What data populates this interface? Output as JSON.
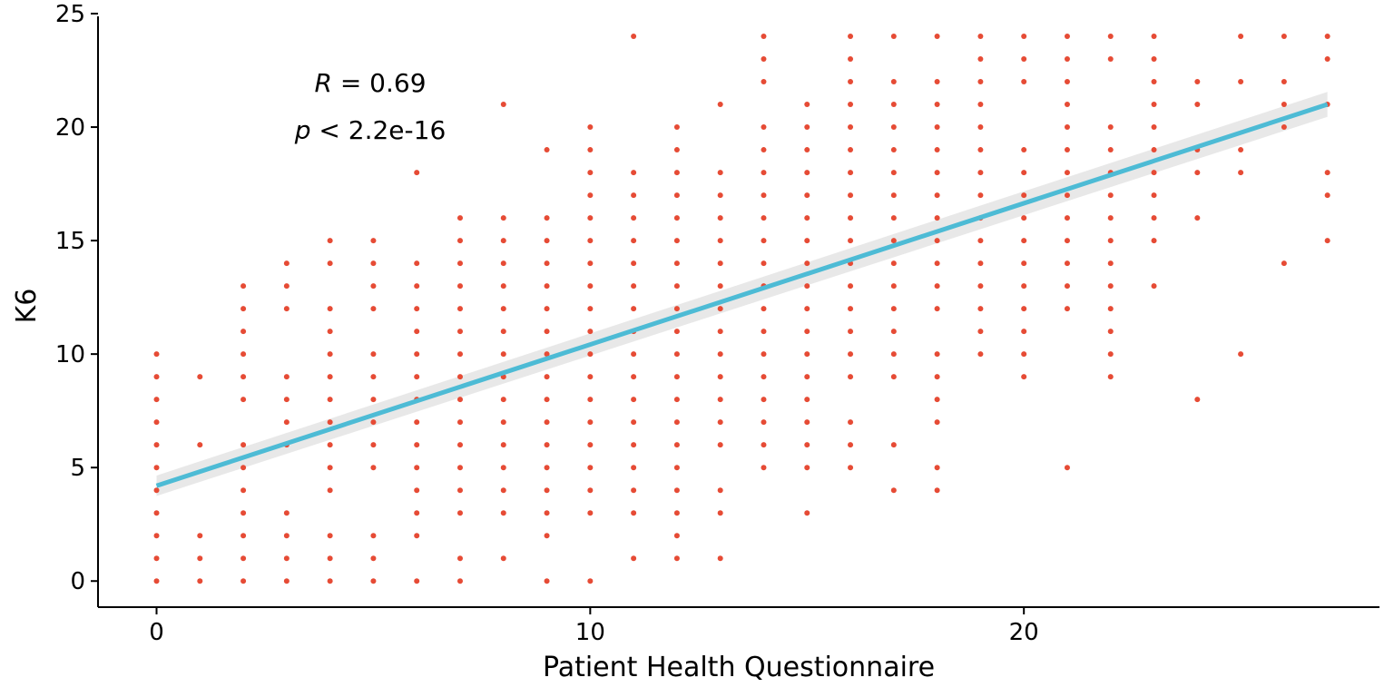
{
  "chart_data": {
    "type": "scatter",
    "title": "",
    "xlabel": "Patient Health Questionnaire",
    "ylabel": "K6",
    "xlim": [
      -1.35,
      28.2
    ],
    "ylim": [
      -1.15,
      25.2
    ],
    "x_ticks": [
      0,
      10,
      20
    ],
    "x_tick_labels": [
      "0",
      "10",
      "20"
    ],
    "y_ticks": [
      0,
      5,
      10,
      15,
      20,
      25
    ],
    "y_tick_labels": [
      "0",
      "5",
      "10",
      "15",
      "20",
      "25"
    ],
    "grid": false,
    "point_color": "#E64B35",
    "line_color": "#4DBBD5",
    "band_color": "#D9D9D9",
    "annotation": {
      "r_symbol": "R",
      "r_text": " = 0.69",
      "p_symbol": "p",
      "p_text": " < 2.2e-16"
    },
    "regression": {
      "x": [
        0,
        27
      ],
      "y": [
        4.2,
        21.0
      ],
      "se_halfwidth": [
        0.45,
        0.55
      ]
    },
    "points": [
      [
        0,
        0
      ],
      [
        0,
        1
      ],
      [
        0,
        2
      ],
      [
        0,
        3
      ],
      [
        0,
        4
      ],
      [
        0,
        5
      ],
      [
        0,
        6
      ],
      [
        0,
        7
      ],
      [
        0,
        8
      ],
      [
        0,
        9
      ],
      [
        0,
        10
      ],
      [
        1,
        0
      ],
      [
        1,
        1
      ],
      [
        1,
        2
      ],
      [
        1,
        6
      ],
      [
        1,
        9
      ],
      [
        2,
        0
      ],
      [
        2,
        1
      ],
      [
        2,
        2
      ],
      [
        2,
        3
      ],
      [
        2,
        4
      ],
      [
        2,
        5
      ],
      [
        2,
        6
      ],
      [
        2,
        8
      ],
      [
        2,
        9
      ],
      [
        2,
        10
      ],
      [
        2,
        11
      ],
      [
        2,
        12
      ],
      [
        2,
        13
      ],
      [
        3,
        0
      ],
      [
        3,
        1
      ],
      [
        3,
        2
      ],
      [
        3,
        3
      ],
      [
        3,
        6
      ],
      [
        3,
        7
      ],
      [
        3,
        8
      ],
      [
        3,
        9
      ],
      [
        3,
        12
      ],
      [
        3,
        13
      ],
      [
        3,
        14
      ],
      [
        4,
        0
      ],
      [
        4,
        1
      ],
      [
        4,
        2
      ],
      [
        4,
        4
      ],
      [
        4,
        5
      ],
      [
        4,
        6
      ],
      [
        4,
        7
      ],
      [
        4,
        8
      ],
      [
        4,
        9
      ],
      [
        4,
        10
      ],
      [
        4,
        11
      ],
      [
        4,
        12
      ],
      [
        4,
        14
      ],
      [
        4,
        15
      ],
      [
        5,
        0
      ],
      [
        5,
        1
      ],
      [
        5,
        2
      ],
      [
        5,
        5
      ],
      [
        5,
        6
      ],
      [
        5,
        7
      ],
      [
        5,
        8
      ],
      [
        5,
        9
      ],
      [
        5,
        10
      ],
      [
        5,
        12
      ],
      [
        5,
        13
      ],
      [
        5,
        14
      ],
      [
        5,
        15
      ],
      [
        6,
        0
      ],
      [
        6,
        2
      ],
      [
        6,
        3
      ],
      [
        6,
        4
      ],
      [
        6,
        5
      ],
      [
        6,
        6
      ],
      [
        6,
        7
      ],
      [
        6,
        8
      ],
      [
        6,
        9
      ],
      [
        6,
        10
      ],
      [
        6,
        11
      ],
      [
        6,
        12
      ],
      [
        6,
        13
      ],
      [
        6,
        14
      ],
      [
        6,
        18
      ],
      [
        7,
        0
      ],
      [
        7,
        1
      ],
      [
        7,
        3
      ],
      [
        7,
        4
      ],
      [
        7,
        5
      ],
      [
        7,
        6
      ],
      [
        7,
        7
      ],
      [
        7,
        8
      ],
      [
        7,
        9
      ],
      [
        7,
        10
      ],
      [
        7,
        11
      ],
      [
        7,
        12
      ],
      [
        7,
        13
      ],
      [
        7,
        14
      ],
      [
        7,
        15
      ],
      [
        7,
        16
      ],
      [
        8,
        1
      ],
      [
        8,
        3
      ],
      [
        8,
        4
      ],
      [
        8,
        5
      ],
      [
        8,
        6
      ],
      [
        8,
        7
      ],
      [
        8,
        8
      ],
      [
        8,
        9
      ],
      [
        8,
        10
      ],
      [
        8,
        11
      ],
      [
        8,
        12
      ],
      [
        8,
        13
      ],
      [
        8,
        14
      ],
      [
        8,
        15
      ],
      [
        8,
        16
      ],
      [
        8,
        21
      ],
      [
        9,
        0
      ],
      [
        9,
        2
      ],
      [
        9,
        3
      ],
      [
        9,
        4
      ],
      [
        9,
        5
      ],
      [
        9,
        6
      ],
      [
        9,
        7
      ],
      [
        9,
        8
      ],
      [
        9,
        9
      ],
      [
        9,
        10
      ],
      [
        9,
        11
      ],
      [
        9,
        12
      ],
      [
        9,
        13
      ],
      [
        9,
        14
      ],
      [
        9,
        15
      ],
      [
        9,
        16
      ],
      [
        9,
        19
      ],
      [
        10,
        0
      ],
      [
        10,
        3
      ],
      [
        10,
        4
      ],
      [
        10,
        5
      ],
      [
        10,
        6
      ],
      [
        10,
        7
      ],
      [
        10,
        8
      ],
      [
        10,
        9
      ],
      [
        10,
        10
      ],
      [
        10,
        11
      ],
      [
        10,
        12
      ],
      [
        10,
        13
      ],
      [
        10,
        14
      ],
      [
        10,
        15
      ],
      [
        10,
        16
      ],
      [
        10,
        17
      ],
      [
        10,
        18
      ],
      [
        10,
        19
      ],
      [
        10,
        20
      ],
      [
        11,
        1
      ],
      [
        11,
        3
      ],
      [
        11,
        4
      ],
      [
        11,
        5
      ],
      [
        11,
        6
      ],
      [
        11,
        7
      ],
      [
        11,
        8
      ],
      [
        11,
        9
      ],
      [
        11,
        10
      ],
      [
        11,
        11
      ],
      [
        11,
        12
      ],
      [
        11,
        13
      ],
      [
        11,
        14
      ],
      [
        11,
        15
      ],
      [
        11,
        16
      ],
      [
        11,
        17
      ],
      [
        11,
        18
      ],
      [
        11,
        24
      ],
      [
        12,
        1
      ],
      [
        12,
        2
      ],
      [
        12,
        3
      ],
      [
        12,
        4
      ],
      [
        12,
        5
      ],
      [
        12,
        6
      ],
      [
        12,
        7
      ],
      [
        12,
        8
      ],
      [
        12,
        9
      ],
      [
        12,
        10
      ],
      [
        12,
        11
      ],
      [
        12,
        12
      ],
      [
        12,
        13
      ],
      [
        12,
        14
      ],
      [
        12,
        15
      ],
      [
        12,
        16
      ],
      [
        12,
        17
      ],
      [
        12,
        18
      ],
      [
        12,
        19
      ],
      [
        12,
        20
      ],
      [
        13,
        1
      ],
      [
        13,
        3
      ],
      [
        13,
        4
      ],
      [
        13,
        6
      ],
      [
        13,
        7
      ],
      [
        13,
        8
      ],
      [
        13,
        9
      ],
      [
        13,
        10
      ],
      [
        13,
        11
      ],
      [
        13,
        12
      ],
      [
        13,
        13
      ],
      [
        13,
        14
      ],
      [
        13,
        15
      ],
      [
        13,
        16
      ],
      [
        13,
        17
      ],
      [
        13,
        18
      ],
      [
        13,
        21
      ],
      [
        14,
        5
      ],
      [
        14,
        6
      ],
      [
        14,
        7
      ],
      [
        14,
        8
      ],
      [
        14,
        9
      ],
      [
        14,
        10
      ],
      [
        14,
        11
      ],
      [
        14,
        12
      ],
      [
        14,
        13
      ],
      [
        14,
        14
      ],
      [
        14,
        15
      ],
      [
        14,
        16
      ],
      [
        14,
        17
      ],
      [
        14,
        18
      ],
      [
        14,
        19
      ],
      [
        14,
        20
      ],
      [
        14,
        22
      ],
      [
        14,
        23
      ],
      [
        14,
        24
      ],
      [
        15,
        3
      ],
      [
        15,
        5
      ],
      [
        15,
        6
      ],
      [
        15,
        7
      ],
      [
        15,
        8
      ],
      [
        15,
        9
      ],
      [
        15,
        10
      ],
      [
        15,
        11
      ],
      [
        15,
        12
      ],
      [
        15,
        13
      ],
      [
        15,
        14
      ],
      [
        15,
        15
      ],
      [
        15,
        16
      ],
      [
        15,
        17
      ],
      [
        15,
        18
      ],
      [
        15,
        19
      ],
      [
        15,
        20
      ],
      [
        15,
        21
      ],
      [
        16,
        5
      ],
      [
        16,
        6
      ],
      [
        16,
        7
      ],
      [
        16,
        9
      ],
      [
        16,
        10
      ],
      [
        16,
        11
      ],
      [
        16,
        12
      ],
      [
        16,
        13
      ],
      [
        16,
        14
      ],
      [
        16,
        15
      ],
      [
        16,
        16
      ],
      [
        16,
        17
      ],
      [
        16,
        18
      ],
      [
        16,
        19
      ],
      [
        16,
        20
      ],
      [
        16,
        21
      ],
      [
        16,
        22
      ],
      [
        16,
        23
      ],
      [
        16,
        24
      ],
      [
        17,
        4
      ],
      [
        17,
        6
      ],
      [
        17,
        9
      ],
      [
        17,
        10
      ],
      [
        17,
        11
      ],
      [
        17,
        12
      ],
      [
        17,
        13
      ],
      [
        17,
        14
      ],
      [
        17,
        15
      ],
      [
        17,
        16
      ],
      [
        17,
        17
      ],
      [
        17,
        18
      ],
      [
        17,
        19
      ],
      [
        17,
        20
      ],
      [
        17,
        21
      ],
      [
        17,
        22
      ],
      [
        17,
        24
      ],
      [
        18,
        4
      ],
      [
        18,
        5
      ],
      [
        18,
        7
      ],
      [
        18,
        8
      ],
      [
        18,
        9
      ],
      [
        18,
        10
      ],
      [
        18,
        12
      ],
      [
        18,
        13
      ],
      [
        18,
        14
      ],
      [
        18,
        15
      ],
      [
        18,
        16
      ],
      [
        18,
        17
      ],
      [
        18,
        18
      ],
      [
        18,
        19
      ],
      [
        18,
        20
      ],
      [
        18,
        21
      ],
      [
        18,
        22
      ],
      [
        18,
        24
      ],
      [
        19,
        10
      ],
      [
        19,
        11
      ],
      [
        19,
        12
      ],
      [
        19,
        13
      ],
      [
        19,
        14
      ],
      [
        19,
        15
      ],
      [
        19,
        16
      ],
      [
        19,
        17
      ],
      [
        19,
        18
      ],
      [
        19,
        19
      ],
      [
        19,
        20
      ],
      [
        19,
        21
      ],
      [
        19,
        22
      ],
      [
        19,
        23
      ],
      [
        19,
        24
      ],
      [
        20,
        9
      ],
      [
        20,
        10
      ],
      [
        20,
        11
      ],
      [
        20,
        12
      ],
      [
        20,
        13
      ],
      [
        20,
        14
      ],
      [
        20,
        15
      ],
      [
        20,
        16
      ],
      [
        20,
        17
      ],
      [
        20,
        18
      ],
      [
        20,
        19
      ],
      [
        20,
        22
      ],
      [
        20,
        23
      ],
      [
        20,
        24
      ],
      [
        21,
        5
      ],
      [
        21,
        12
      ],
      [
        21,
        13
      ],
      [
        21,
        14
      ],
      [
        21,
        15
      ],
      [
        21,
        16
      ],
      [
        21,
        17
      ],
      [
        21,
        18
      ],
      [
        21,
        19
      ],
      [
        21,
        20
      ],
      [
        21,
        21
      ],
      [
        21,
        22
      ],
      [
        21,
        23
      ],
      [
        21,
        24
      ],
      [
        22,
        9
      ],
      [
        22,
        10
      ],
      [
        22,
        11
      ],
      [
        22,
        12
      ],
      [
        22,
        13
      ],
      [
        22,
        14
      ],
      [
        22,
        15
      ],
      [
        22,
        16
      ],
      [
        22,
        17
      ],
      [
        22,
        18
      ],
      [
        22,
        19
      ],
      [
        22,
        20
      ],
      [
        22,
        23
      ],
      [
        22,
        24
      ],
      [
        23,
        13
      ],
      [
        23,
        15
      ],
      [
        23,
        16
      ],
      [
        23,
        17
      ],
      [
        23,
        18
      ],
      [
        23,
        19
      ],
      [
        23,
        20
      ],
      [
        23,
        21
      ],
      [
        23,
        22
      ],
      [
        23,
        23
      ],
      [
        23,
        24
      ],
      [
        24,
        8
      ],
      [
        24,
        16
      ],
      [
        24,
        18
      ],
      [
        24,
        19
      ],
      [
        24,
        21
      ],
      [
        24,
        22
      ],
      [
        25,
        10
      ],
      [
        25,
        18
      ],
      [
        25,
        19
      ],
      [
        25,
        22
      ],
      [
        25,
        24
      ],
      [
        26,
        14
      ],
      [
        26,
        20
      ],
      [
        26,
        21
      ],
      [
        26,
        22
      ],
      [
        26,
        24
      ],
      [
        27,
        15
      ],
      [
        27,
        17
      ],
      [
        27,
        18
      ],
      [
        27,
        21
      ],
      [
        27,
        23
      ],
      [
        27,
        24
      ]
    ]
  }
}
